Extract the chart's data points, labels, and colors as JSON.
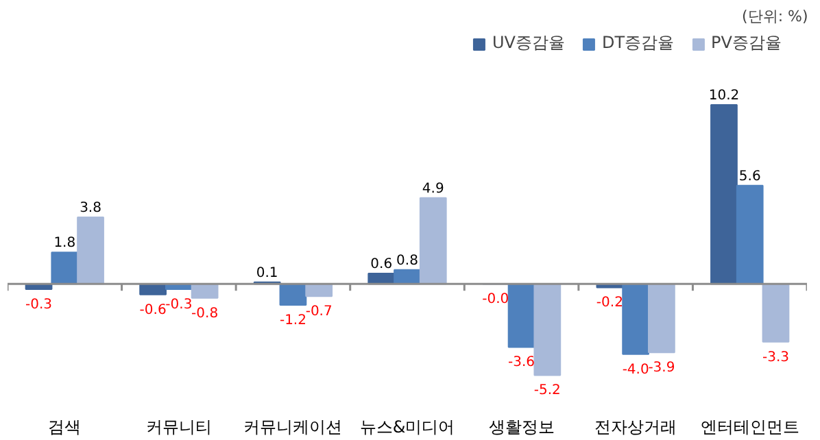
{
  "chart_data": {
    "type": "bar",
    "categories": [
      "검색",
      "커뮤니티",
      "커뮤니케이션",
      "뉴스&미디어",
      "생활정보",
      "전자상거래",
      "엔터테인먼트"
    ],
    "series": [
      {
        "name": "UV증감율",
        "color": "#3e6499",
        "values": [
          -0.3,
          -0.6,
          0.1,
          0.6,
          -0.0,
          -0.2,
          10.2
        ],
        "value_labels": [
          "-0.3",
          "-0.6",
          "0.1",
          "0.6",
          "-0.0",
          "-0.2",
          "10.2"
        ]
      },
      {
        "name": "DT증감율",
        "color": "#4f81bd",
        "values": [
          1.8,
          -0.3,
          -1.2,
          0.8,
          -3.6,
          -4.0,
          5.6
        ],
        "value_labels": [
          "1.8",
          "-0.3",
          "-1.2",
          "0.8",
          "-3.6",
          "-4.0",
          "5.6"
        ]
      },
      {
        "name": "PV증감율",
        "color": "#a8b9d9",
        "values": [
          3.8,
          -0.8,
          -0.7,
          4.9,
          -5.2,
          -3.9,
          -3.3
        ],
        "value_labels": [
          "3.8",
          "-0.8",
          "-0.7",
          "4.9",
          "-5.2",
          "-3.9",
          "-3.3"
        ]
      }
    ],
    "annotations": [
      "(단위: %)"
    ],
    "legend": "top right"
  }
}
